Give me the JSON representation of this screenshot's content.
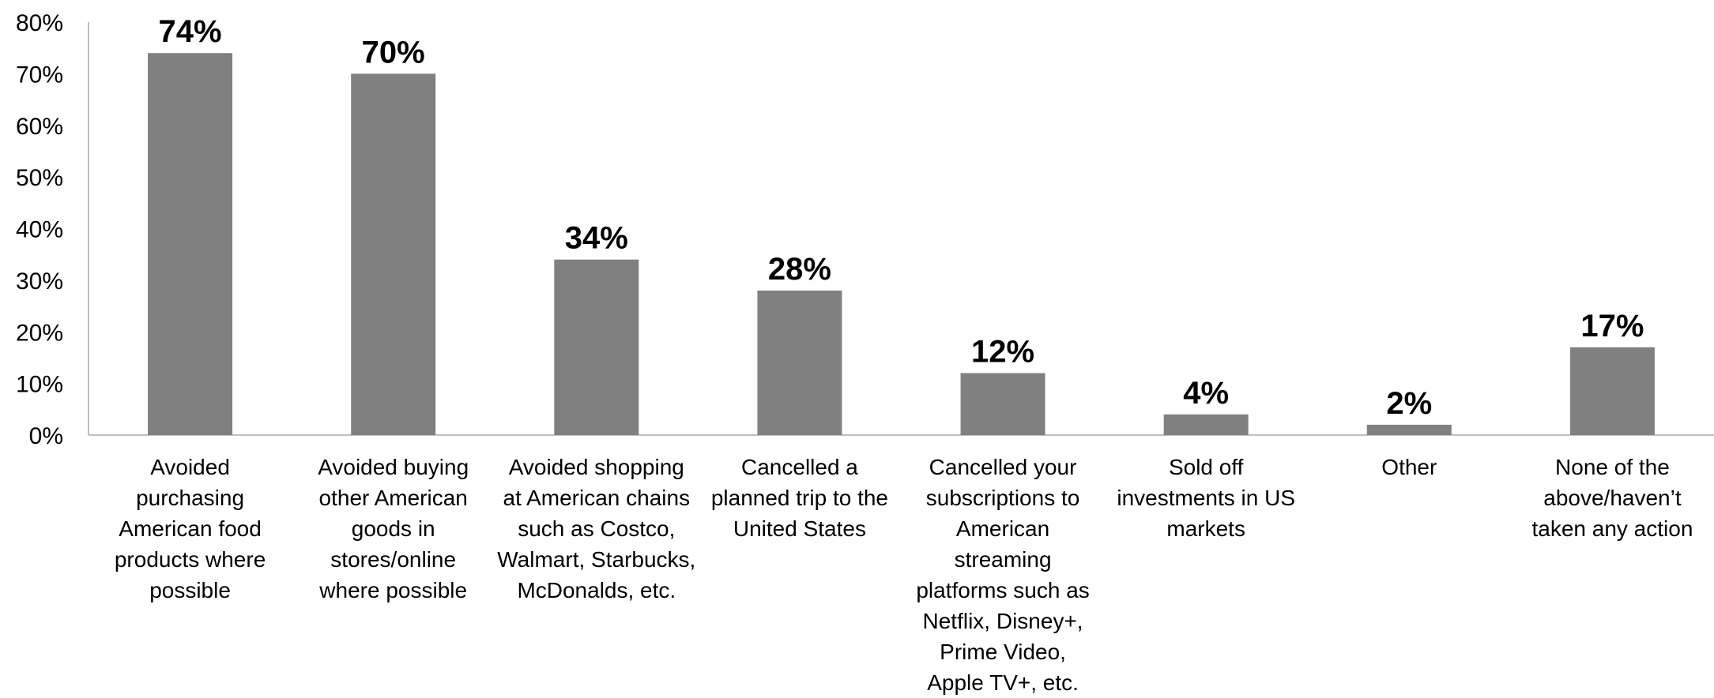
{
  "chart_data": {
    "type": "bar",
    "title": "",
    "xlabel": "",
    "ylabel": "",
    "ylim": [
      0,
      80
    ],
    "yticks": [
      "0%",
      "10%",
      "20%",
      "30%",
      "40%",
      "50%",
      "60%",
      "70%",
      "80%"
    ],
    "grid": false,
    "legend": "none",
    "bar_color": "#808080",
    "categories": [
      "Avoided purchasing American food products where possible",
      "Avoided buying other American goods in stores/online where possible",
      "Avoided shopping at American chains such as Costco, Walmart, Starbucks, McDonalds, etc.",
      "Cancelled a planned trip to the United States",
      "Cancelled your subscriptions to American streaming platforms such as Netflix, Disney+, Prime Video, Apple TV+, etc.",
      "Sold off investments in US markets",
      "Other",
      "None of the above/haven’t taken any action"
    ],
    "values": [
      74,
      70,
      34,
      28,
      12,
      4,
      2,
      17
    ],
    "data_labels": [
      "74%",
      "70%",
      "34%",
      "28%",
      "12%",
      "4%",
      "2%",
      "17%"
    ]
  }
}
